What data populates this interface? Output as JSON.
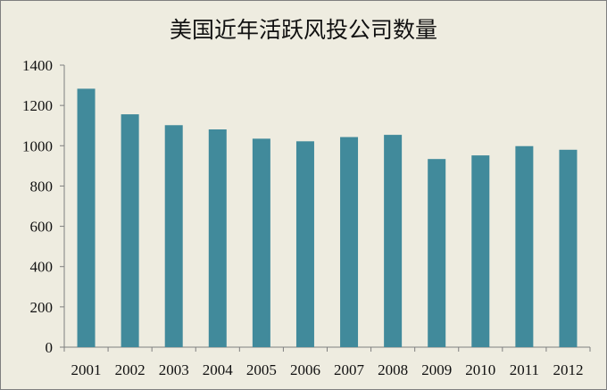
{
  "colors": {
    "background": "#eeece0",
    "bar": "#418a9b",
    "axis": "#7f7f7f",
    "text": "#111111"
  },
  "chart_data": {
    "type": "bar",
    "title": "美国近年活跃风投公司数量",
    "xlabel": "",
    "ylabel": "",
    "categories": [
      "2001",
      "2002",
      "2003",
      "2004",
      "2005",
      "2006",
      "2007",
      "2008",
      "2009",
      "2010",
      "2011",
      "2012"
    ],
    "values": [
      1283,
      1156,
      1102,
      1081,
      1035,
      1022,
      1043,
      1054,
      934,
      952,
      998,
      980
    ],
    "ylim": [
      0,
      1400
    ],
    "yticks": [
      0,
      200,
      400,
      600,
      800,
      1000,
      1200,
      1400
    ],
    "grid": false,
    "legend": "none"
  }
}
